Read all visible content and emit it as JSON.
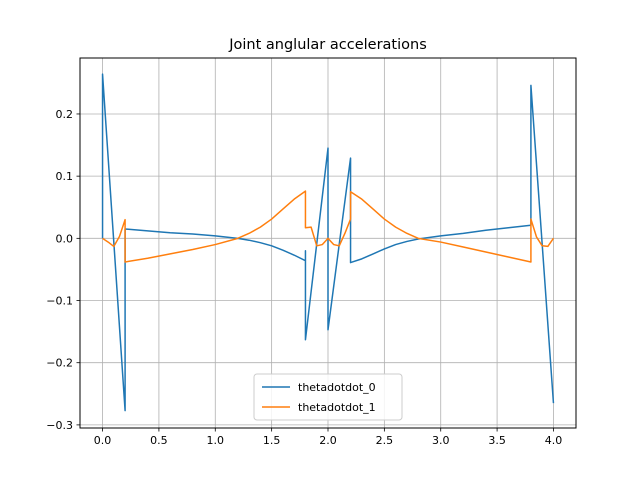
{
  "chart_data": {
    "type": "line",
    "title": "Joint anglular accelerations",
    "xlabel": "",
    "ylabel": "",
    "xlim": [
      -0.2,
      4.2
    ],
    "ylim": [
      -0.305,
      0.29
    ],
    "xticks": [
      0.0,
      0.5,
      1.0,
      1.5,
      2.0,
      2.5,
      3.0,
      3.5,
      4.0
    ],
    "xtick_labels": [
      "0.0",
      "0.5",
      "1.0",
      "1.5",
      "2.0",
      "2.5",
      "3.0",
      "3.5",
      "4.0"
    ],
    "yticks": [
      -0.3,
      -0.2,
      -0.1,
      0.0,
      0.1,
      0.2
    ],
    "ytick_labels": [
      "−0.3",
      "−0.2",
      "−0.1",
      "0.0",
      "0.1",
      "0.2"
    ],
    "grid": true,
    "legend_position": "lower center",
    "series": [
      {
        "name": "thetadotdot_0",
        "color": "#1f77b4",
        "x": [
          0.0,
          0.0,
          0.2,
          0.2,
          0.4,
          0.6,
          0.8,
          1.0,
          1.1,
          1.2,
          1.3,
          1.4,
          1.5,
          1.6,
          1.7,
          1.8,
          1.8,
          1.8,
          2.0,
          2.0,
          2.2,
          2.2,
          2.3,
          2.4,
          2.5,
          2.6,
          2.7,
          2.8,
          3.0,
          3.2,
          3.4,
          3.6,
          3.8,
          3.8,
          4.0
        ],
        "y": [
          0.0,
          0.264,
          -0.277,
          0.015,
          0.012,
          0.009,
          0.007,
          0.004,
          0.002,
          0.0,
          -0.003,
          -0.007,
          -0.012,
          -0.019,
          -0.027,
          -0.036,
          -0.02,
          -0.163,
          0.145,
          -0.147,
          0.129,
          -0.039,
          -0.033,
          -0.025,
          -0.017,
          -0.01,
          -0.005,
          -0.001,
          0.004,
          0.008,
          0.013,
          0.017,
          0.021,
          0.246,
          -0.265
        ]
      },
      {
        "name": "thetadotdot_1",
        "color": "#ff7f0e",
        "x": [
          0.0,
          0.05,
          0.1,
          0.15,
          0.2,
          0.2,
          0.4,
          0.6,
          0.8,
          1.0,
          1.2,
          1.3,
          1.4,
          1.5,
          1.6,
          1.7,
          1.8,
          1.8,
          1.85,
          1.9,
          1.95,
          2.0,
          2.05,
          2.1,
          2.15,
          2.2,
          2.2,
          2.3,
          2.4,
          2.5,
          2.6,
          2.7,
          2.8,
          3.0,
          3.2,
          3.4,
          3.6,
          3.8,
          3.8,
          3.85,
          3.9,
          3.95,
          4.0
        ],
        "y": [
          0.0,
          -0.006,
          -0.013,
          0.003,
          0.03,
          -0.038,
          -0.032,
          -0.025,
          -0.018,
          -0.01,
          0.0,
          0.008,
          0.018,
          0.031,
          0.047,
          0.063,
          0.076,
          0.017,
          0.018,
          -0.012,
          -0.01,
          0.0,
          -0.01,
          -0.012,
          0.008,
          0.031,
          0.075,
          0.063,
          0.047,
          0.031,
          0.018,
          0.008,
          0.0,
          -0.006,
          -0.014,
          -0.022,
          -0.03,
          -0.038,
          0.031,
          0.002,
          -0.012,
          -0.013,
          0.0
        ]
      }
    ]
  }
}
